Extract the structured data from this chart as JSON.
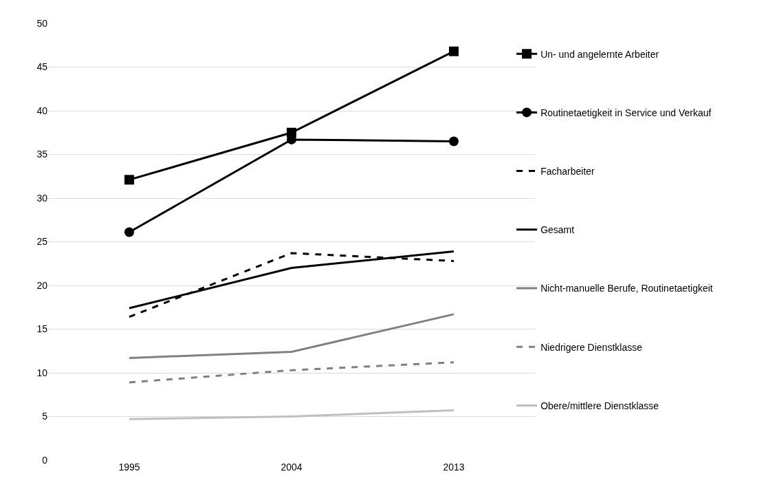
{
  "chart_data": {
    "type": "line",
    "categories": [
      "1995",
      "2004",
      "2013"
    ],
    "series": [
      {
        "name": "Un- und angelernte Arbeiter",
        "color": "#000000",
        "marker": "square",
        "line_style": "solid",
        "values": [
          32.1,
          37.5,
          46.8
        ]
      },
      {
        "name": "Routinetaetigkeit in Service und Verkauf",
        "color": "#000000",
        "marker": "circle",
        "line_style": "solid",
        "values": [
          26.1,
          36.7,
          36.5
        ]
      },
      {
        "name": "Facharbeiter",
        "color": "#000000",
        "marker": "none",
        "line_style": "dashed",
        "values": [
          16.4,
          23.7,
          22.8
        ]
      },
      {
        "name": "Gesamt",
        "color": "#000000",
        "marker": "none",
        "line_style": "solid",
        "values": [
          17.4,
          22.0,
          23.9
        ]
      },
      {
        "name": "Nicht-manuelle Berufe, Routinetaetigkeit",
        "color": "#808080",
        "marker": "none",
        "line_style": "solid",
        "values": [
          11.7,
          12.4,
          16.7
        ]
      },
      {
        "name": "Niedrigere Dienstklasse",
        "color": "#808080",
        "marker": "none",
        "line_style": "dashed",
        "values": [
          8.9,
          10.3,
          11.2
        ]
      },
      {
        "name": "Obere/mittlere Dienstklasse",
        "color": "#bfbfbf",
        "marker": "none",
        "line_style": "solid",
        "values": [
          4.7,
          5.0,
          5.7
        ]
      }
    ],
    "ylim": [
      0,
      50
    ],
    "yticks": [
      0,
      5,
      10,
      15,
      20,
      25,
      30,
      35,
      40,
      45,
      50
    ],
    "grid": "y",
    "legend": "right"
  }
}
